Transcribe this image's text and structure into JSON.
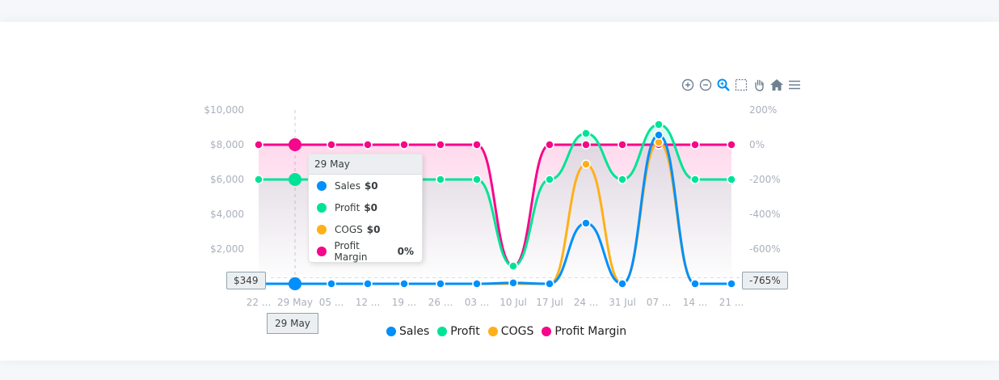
{
  "chart_data": {
    "type": "line",
    "curve": "smooth",
    "categories": [
      "22 ...",
      "29 May",
      "05 ...",
      "12 ...",
      "19 ...",
      "26 ...",
      "03 ...",
      "10 Jul",
      "17 Jul",
      "24 ...",
      "31 Jul",
      "07 ...",
      "14 ...",
      "21 ..."
    ],
    "series": [
      {
        "name": "Sales",
        "axis": "left",
        "color": "#008FFB",
        "values": [
          0,
          0,
          0,
          0,
          0,
          0,
          0,
          50,
          0,
          3490,
          0,
          8560,
          0,
          0
        ]
      },
      {
        "name": "Profit",
        "axis": "hidden",
        "color": "#00E396",
        "values": [
          0,
          0,
          0,
          0,
          0,
          0,
          0,
          -4980,
          0,
          2650,
          0,
          3160,
          0,
          0
        ]
      },
      {
        "name": "COGS",
        "axis": "left",
        "color": "#FEB019",
        "values": [
          0,
          0,
          0,
          0,
          0,
          0,
          0,
          0,
          0,
          6880,
          0,
          8140,
          0,
          0
        ]
      },
      {
        "name": "Profit Margin",
        "axis": "right",
        "color": "#F5078A",
        "values": [
          0,
          0,
          0,
          0,
          0,
          0,
          0,
          -698,
          0,
          0,
          0,
          0,
          0,
          0
        ]
      }
    ],
    "y_left": {
      "range": [
        0,
        10000
      ],
      "ticks": [
        "$10,000",
        "$8,000",
        "$6,000",
        "$4,000",
        "$2,000"
      ],
      "tick_values": [
        10000,
        8000,
        6000,
        4000,
        2000
      ]
    },
    "y_hidden": {
      "range": [
        -6000,
        4000
      ]
    },
    "y_right": {
      "range": [
        -800,
        200
      ],
      "ticks": [
        "200%",
        "0%",
        "-200%",
        "-400%",
        "-600%"
      ],
      "tick_values": [
        200,
        0,
        -200,
        -400,
        -600
      ]
    },
    "grid": false,
    "legend": {
      "placement": "bottom",
      "items": [
        "Sales",
        "Profit",
        "COGS",
        "Profit Margin"
      ]
    },
    "crosshair": {
      "category": "29 May",
      "x_label": "29 May",
      "left_value_label": "$349",
      "right_value_label": "-765%",
      "left_value": 349,
      "right_value": -765
    },
    "tooltip": {
      "title": "29 May",
      "rows": [
        {
          "name": "Sales",
          "value": "$0",
          "color": "#008FFB"
        },
        {
          "name": "Profit",
          "value": "$0",
          "color": "#00E396"
        },
        {
          "name": "COGS",
          "value": "$0",
          "color": "#FEB019"
        },
        {
          "name": "Profit Margin",
          "value": "0%",
          "color": "#F5078A"
        }
      ]
    }
  },
  "toolbar": {
    "icons": [
      "zoom-in-icon",
      "zoom-out-icon",
      "selection-zoom-icon",
      "selection-icon",
      "pan-icon",
      "home-icon",
      "menu-icon"
    ],
    "active_color": "#008FFB",
    "icon_color": "#6e8192"
  }
}
